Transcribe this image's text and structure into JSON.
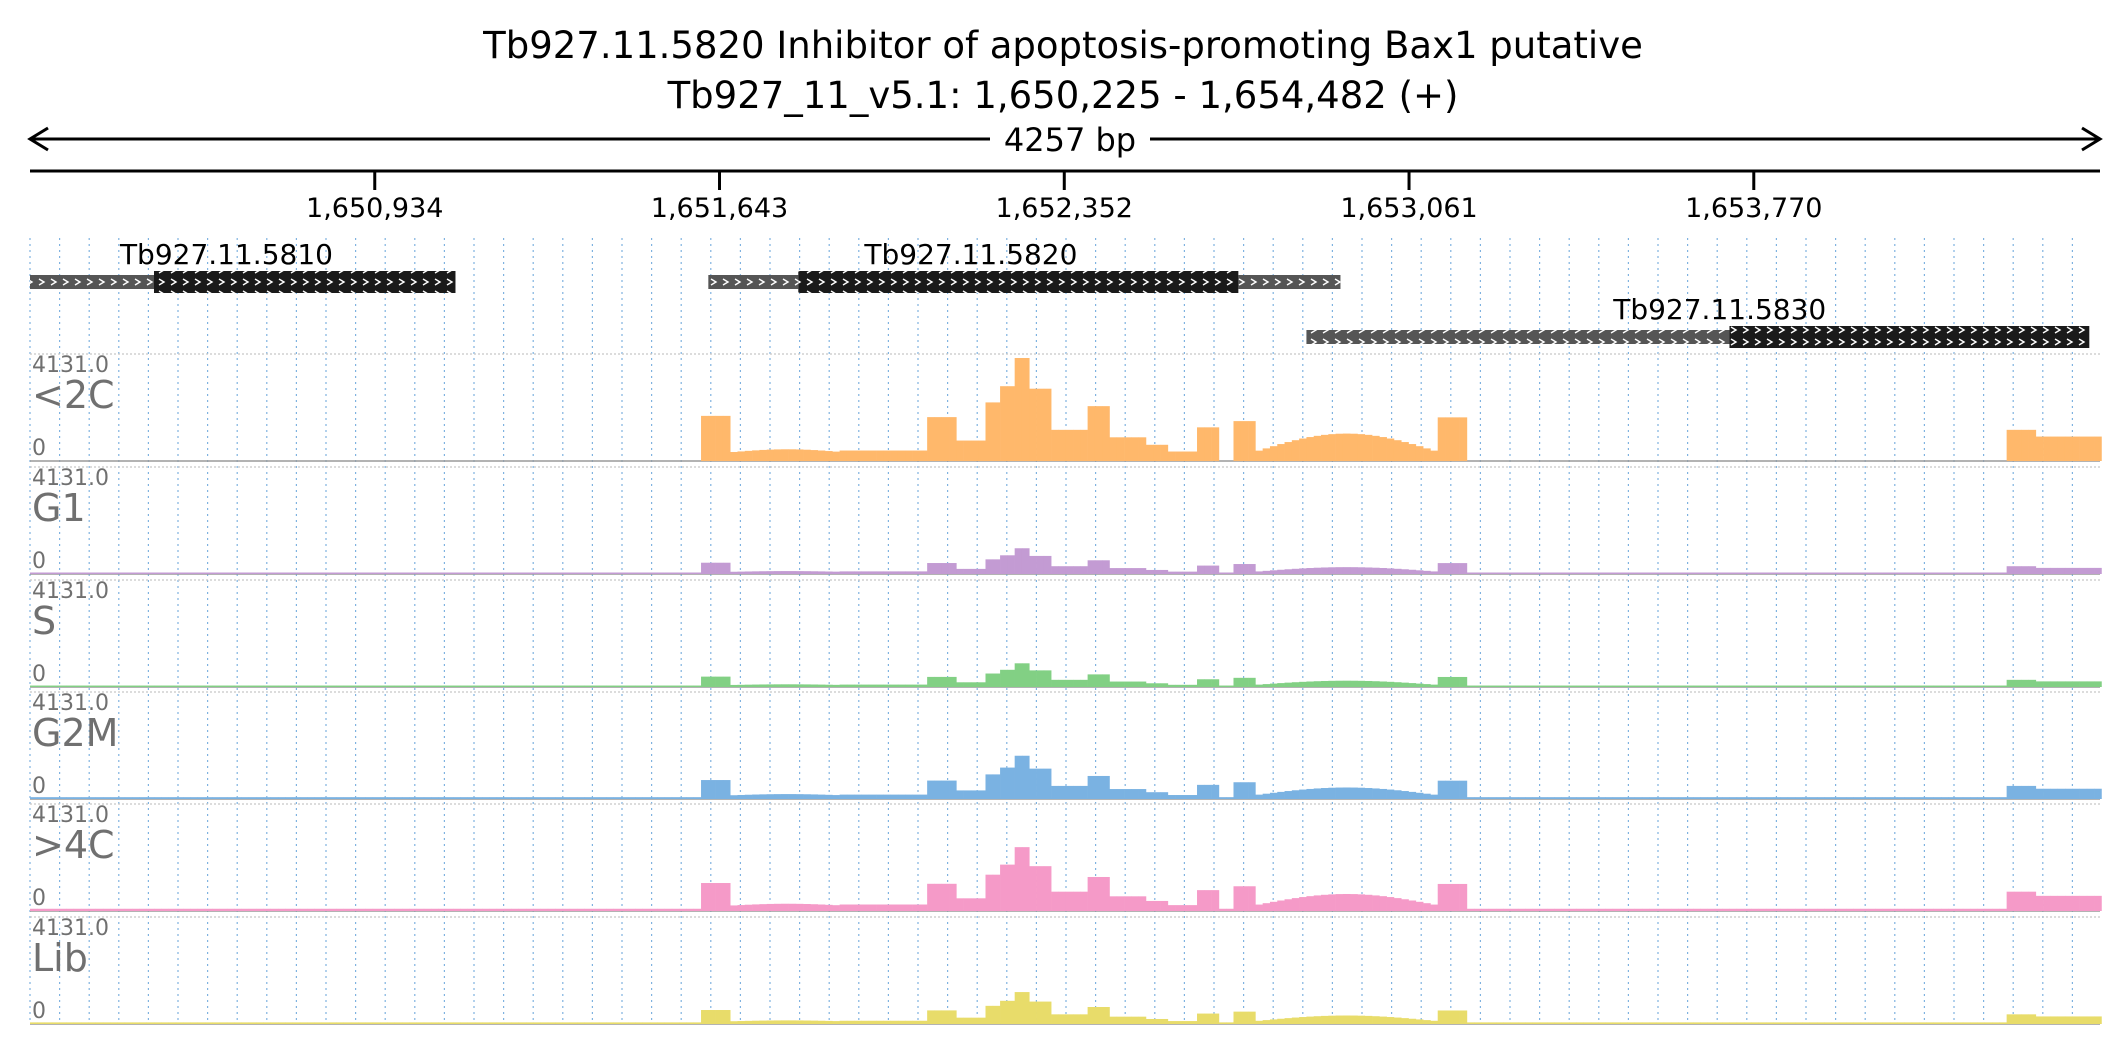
{
  "header": {
    "title": "Tb927.11.5820  Inhibitor of apoptosis-promoting Bax1  putative",
    "locus": "Tb927_11_v5.1: 1,650,225 - 1,654,482 (+)",
    "span_label": "4257 bp"
  },
  "colors": {
    "text": "#000000",
    "track_label": "#707070",
    "grid": "#7fb2e0",
    "gene_cds": "#1a1a1a",
    "gene_utr": "#555555",
    "<2C": "#ffb86b",
    "G1": "#c39bd3",
    "S": "#82d084",
    "G2M": "#7ab2e2",
    ">4C": "#f59ac8",
    "Lib": "#e8dc6a"
  },
  "chart_data": {
    "type": "area",
    "x_unit": "bp",
    "xlim": [
      1650225,
      1654482
    ],
    "x_ticks": [
      1650934,
      1651643,
      1652352,
      1653061,
      1653770
    ],
    "x_tick_labels": [
      "1,650,934",
      "1,651,643",
      "1,652,352",
      "1,653,061",
      "1,653,770"
    ],
    "grid": true,
    "genes": [
      {
        "name": "Tb927.11.5810",
        "utr5": [
          1650225,
          1650480
        ],
        "cds": [
          1650480,
          1651100
        ],
        "utr3": null,
        "row": 0,
        "label_x": 1650629
      },
      {
        "name": "Tb927.11.5820",
        "utr5": [
          1651620,
          1651805
        ],
        "cds": [
          1651805,
          1652710
        ],
        "utr3": [
          1652710,
          1652920
        ],
        "row": 0,
        "label_x": 1652160
      },
      {
        "name": "Tb927.11.5830",
        "utr5": [
          1652850,
          1653720
        ],
        "cds": [
          1653720,
          1654460
        ],
        "utr3": null,
        "row": 1,
        "label_x": 1653700
      }
    ],
    "tracks": [
      {
        "name": "<2C",
        "ymax_label": "4131.0",
        "ymin_label": "0",
        "ylim": [
          0,
          4131
        ],
        "scale": 1.0
      },
      {
        "name": "G1",
        "ymax_label": "4131.0",
        "ymin_label": "0",
        "ylim": [
          0,
          4131
        ],
        "scale": 0.25
      },
      {
        "name": "S",
        "ymax_label": "4131.0",
        "ymin_label": "0",
        "ylim": [
          0,
          4131
        ],
        "scale": 0.23
      },
      {
        "name": "G2M",
        "ymax_label": "4131.0",
        "ymin_label": "0",
        "ylim": [
          0,
          4131
        ],
        "scale": 0.42
      },
      {
        "name": ">4C",
        "ymax_label": "4131.0",
        "ymin_label": "0",
        "ylim": [
          0,
          4131
        ],
        "scale": 0.62
      },
      {
        "name": "Lib",
        "ymax_label": "4131.0",
        "ymin_label": "0",
        "ylim": [
          0,
          4131
        ],
        "scale": 0.31
      }
    ],
    "coverage_profile": {
      "note_units": "read coverage of <2C track; other tracks share the profile shape with the given scale",
      "bin_bp": 15,
      "segments": [
        {
          "start": 1650225,
          "end": 1651600,
          "level": 0
        },
        {
          "start": 1651600,
          "end": 1651660,
          "level": 1810
        },
        {
          "start": 1651660,
          "end": 1651890,
          "level": 470
        },
        {
          "start": 1651890,
          "end": 1652060,
          "level": 420
        },
        {
          "start": 1652060,
          "end": 1652120,
          "level": 1760
        },
        {
          "start": 1652120,
          "end": 1652185,
          "level": 820
        },
        {
          "start": 1652185,
          "end": 1652215,
          "level": 2350
        },
        {
          "start": 1652215,
          "end": 1652245,
          "level": 3000
        },
        {
          "start": 1652245,
          "end": 1652280,
          "level": 4131
        },
        {
          "start": 1652280,
          "end": 1652315,
          "level": 2900
        },
        {
          "start": 1652315,
          "end": 1652390,
          "level": 1250
        },
        {
          "start": 1652390,
          "end": 1652445,
          "level": 2200
        },
        {
          "start": 1652445,
          "end": 1652520,
          "level": 950
        },
        {
          "start": 1652520,
          "end": 1652565,
          "level": 650
        },
        {
          "start": 1652565,
          "end": 1652620,
          "level": 380
        },
        {
          "start": 1652620,
          "end": 1652670,
          "level": 1350
        },
        {
          "start": 1652670,
          "end": 1652695,
          "level": 0
        },
        {
          "start": 1652695,
          "end": 1652740,
          "level": 1600
        },
        {
          "start": 1652740,
          "end": 1653110,
          "level": 1100
        },
        {
          "start": 1653110,
          "end": 1653170,
          "level": 1750
        },
        {
          "start": 1653170,
          "end": 1654280,
          "level": 0
        },
        {
          "start": 1654280,
          "end": 1654340,
          "level": 1250
        },
        {
          "start": 1654340,
          "end": 1654482,
          "level": 980
        }
      ]
    }
  }
}
